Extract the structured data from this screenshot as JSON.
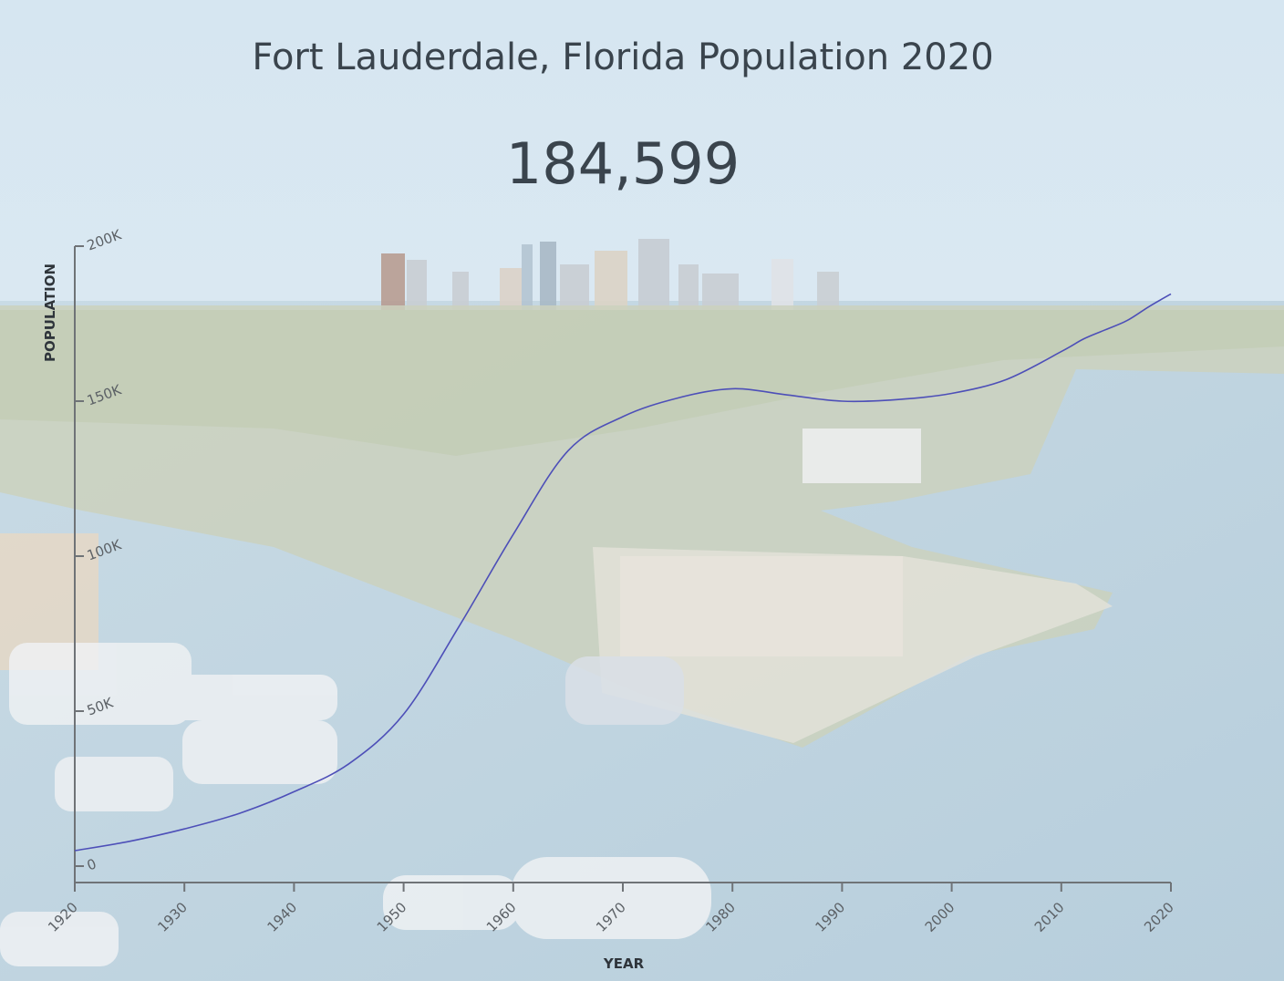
{
  "header": {
    "title": "Fort Lauderdale, Florida Population 2020",
    "population": "184,599"
  },
  "colors": {
    "line": "#4d4fb8",
    "axis": "#6f7377",
    "text": "#3a444d"
  },
  "chart_data": {
    "type": "line",
    "title": "Fort Lauderdale, Florida Population 2020",
    "xlabel": "YEAR",
    "ylabel": "POPULATION",
    "xlim": [
      1920,
      2020
    ],
    "ylim": [
      0,
      200000
    ],
    "x_ticks": [
      1920,
      1930,
      1940,
      1950,
      1960,
      1970,
      1980,
      1990,
      2000,
      2010,
      2020
    ],
    "y_ticks": [
      {
        "value": 0,
        "label": "0"
      },
      {
        "value": 50000,
        "label": "50K"
      },
      {
        "value": 100000,
        "label": "100K"
      },
      {
        "value": 150000,
        "label": "150K"
      },
      {
        "value": 200000,
        "label": "200K"
      }
    ],
    "grid": false,
    "series": [
      {
        "x": [
          1920,
          1925,
          1930,
          1935,
          1940,
          1945,
          1950,
          1955,
          1960,
          1965,
          1970,
          1975,
          1980,
          1985,
          1990,
          1995,
          2000,
          2005,
          2010,
          2012,
          2014,
          2016,
          2018,
          2020
        ],
        "y": [
          5000,
          8000,
          12000,
          17000,
          24000,
          33000,
          49000,
          77000,
          107000,
          134000,
          145000,
          151000,
          154000,
          152000,
          150000,
          150500,
          152500,
          157000,
          166000,
          170000,
          173000,
          176000,
          180500,
          184599
        ]
      }
    ]
  }
}
